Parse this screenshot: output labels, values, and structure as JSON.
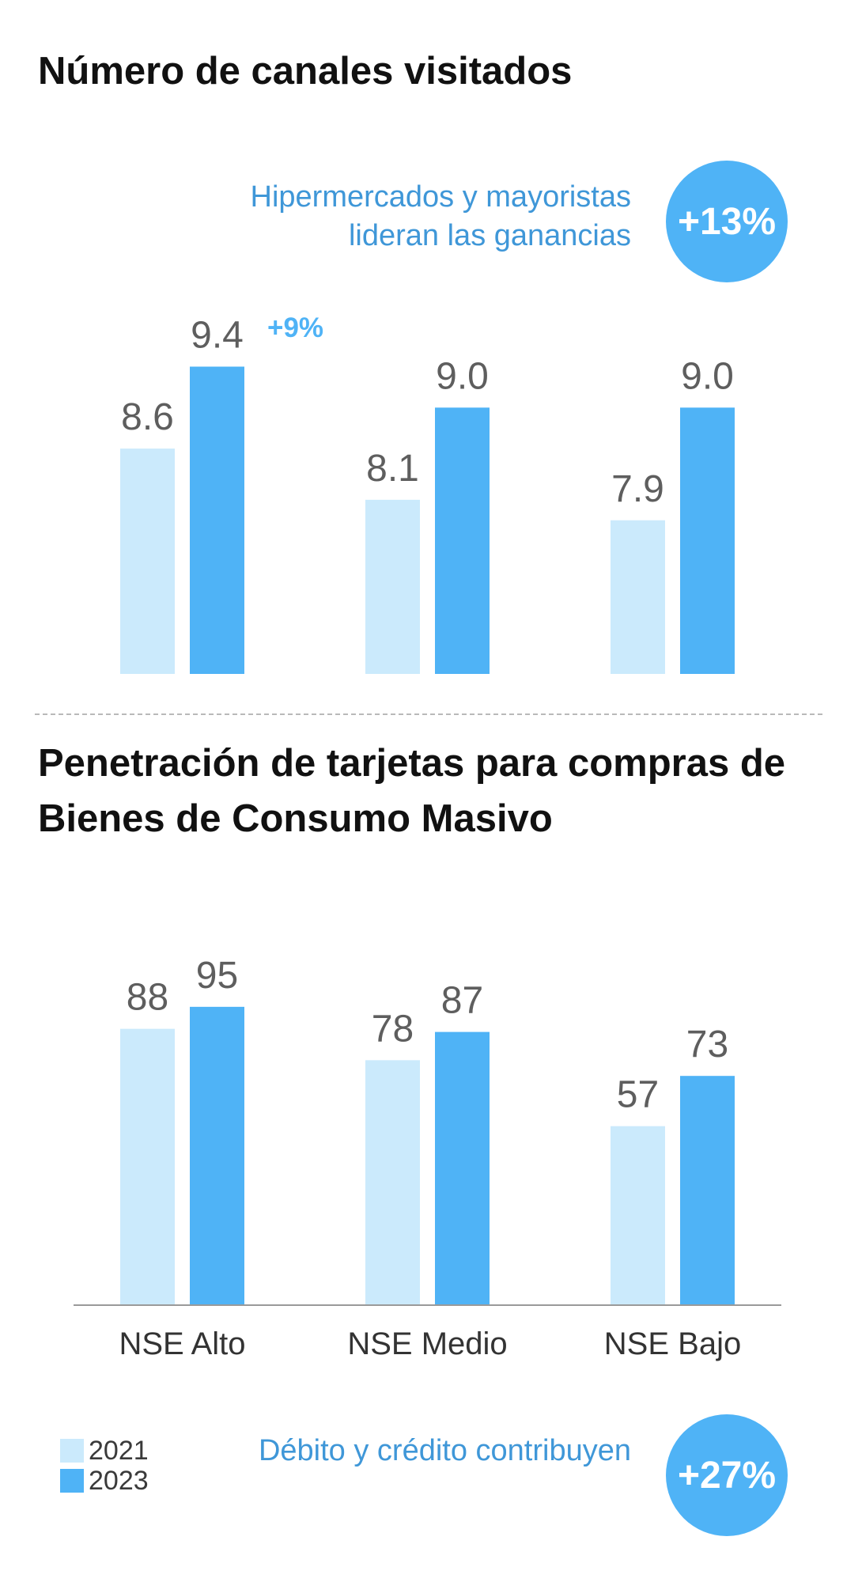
{
  "section1": {
    "title": "Número de canales visitados",
    "callout": "Hipermercados y mayoristas lideran las ganancias",
    "bubble": "+13%"
  },
  "section2": {
    "title": "Penetración de tarjetas para compras de Bienes de Consumo Masivo",
    "callout": "Débito y crédito contribuyen",
    "bubble": "+27%"
  },
  "legend": {
    "items": [
      {
        "label": "2021",
        "color": "#cbeafc"
      },
      {
        "label": "2023",
        "color": "#4fb3f6"
      }
    ]
  },
  "colors": {
    "s2021": "#cbeafc",
    "s2023": "#4fb3f6",
    "accent": "#4fb3f6",
    "value_label": "#5e5e5e"
  },
  "chart_data": [
    {
      "type": "bar",
      "title": "Número de canales visitados",
      "categories": [
        "NSE Alto",
        "NSE Medio",
        "NSE Bajo"
      ],
      "series": [
        {
          "name": "2021",
          "values": [
            8.6,
            8.1,
            7.9
          ]
        },
        {
          "name": "2023",
          "values": [
            9.4,
            9.0,
            9.0
          ]
        }
      ],
      "value_labels": {
        "2021": [
          "8.6",
          "8.1",
          "7.9"
        ],
        "2023": [
          "9.4",
          "9.0",
          "9.0"
        ]
      },
      "annotations": [
        {
          "category": "NSE Alto",
          "text": "+9%"
        }
      ],
      "legend": "bottom-left"
    },
    {
      "type": "bar",
      "title": "Penetración de tarjetas para compras de Bienes de Consumo Masivo",
      "categories": [
        "NSE Alto",
        "NSE Medio",
        "NSE Bajo"
      ],
      "series": [
        {
          "name": "2021",
          "values": [
            88,
            78,
            57
          ]
        },
        {
          "name": "2023",
          "values": [
            95,
            87,
            73
          ]
        }
      ],
      "value_labels": {
        "2021": [
          "88",
          "78",
          "57"
        ],
        "2023": [
          "95",
          "87",
          "73"
        ]
      },
      "legend": "bottom-left"
    }
  ]
}
